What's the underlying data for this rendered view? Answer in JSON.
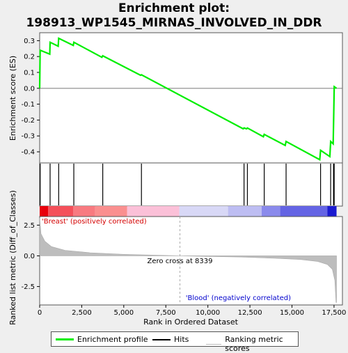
{
  "title_line1": "Enrichment plot:",
  "title_line2": "198913_WP1545_MIRNAS_INVOLVED_IN_DDR",
  "colors": {
    "enrichment": "#00ee00",
    "hits": "#000000",
    "metric": "#bdbdbd",
    "positive_label": "#d40000",
    "negative_label": "#0000cc"
  },
  "chart_data": {
    "type": "line",
    "xlabel": "Rank in Ordered Dataset",
    "ylabel_top": "Enrichment score (ES)",
    "ylabel_bottom": "Ranked list metric (Diff_of_Classes)",
    "xlim": [
      0,
      18000
    ],
    "x_ticks": [
      0,
      2500,
      5000,
      7500,
      10000,
      12500,
      15000,
      17500
    ],
    "x_tick_labels": [
      "0",
      "2,500",
      "5,000",
      "7,500",
      "10,000",
      "12,500",
      "15,000",
      "17,500"
    ],
    "es_ylim": [
      -0.47,
      0.35
    ],
    "es_ticks": [
      0.3,
      0.2,
      0.1,
      0.0,
      -0.1,
      -0.2,
      -0.3,
      -0.4
    ],
    "es_tick_labels": [
      "0.3",
      "0.2",
      "0.1",
      "0.0",
      "-0.1",
      "-0.2",
      "-0.3",
      "-0.4"
    ],
    "metric_ylim": [
      -4.0,
      3.2
    ],
    "metric_ticks": [
      2.5,
      0.0,
      -2.5
    ],
    "metric_tick_labels": [
      "2.5",
      "0.0",
      "-2.5"
    ],
    "series": [
      {
        "name": "Enrichment profile",
        "points": [
          [
            0,
            0.0
          ],
          [
            30,
            0.24
          ],
          [
            600,
            0.215
          ],
          [
            620,
            0.29
          ],
          [
            1100,
            0.265
          ],
          [
            1130,
            0.315
          ],
          [
            2000,
            0.27
          ],
          [
            2030,
            0.29
          ],
          [
            3700,
            0.195
          ],
          [
            3750,
            0.205
          ],
          [
            6000,
            0.082
          ],
          [
            6050,
            0.085
          ],
          [
            12100,
            -0.255
          ],
          [
            12150,
            -0.25
          ],
          [
            12300,
            -0.255
          ],
          [
            12350,
            -0.25
          ],
          [
            13300,
            -0.305
          ],
          [
            13350,
            -0.29
          ],
          [
            14600,
            -0.36
          ],
          [
            14650,
            -0.335
          ],
          [
            16650,
            -0.45
          ],
          [
            16700,
            -0.39
          ],
          [
            17250,
            -0.43
          ],
          [
            17300,
            -0.335
          ],
          [
            17450,
            -0.35
          ],
          [
            17470,
            -0.235
          ],
          [
            17490,
            -0.115
          ],
          [
            17510,
            0.01
          ],
          [
            17650,
            0.0
          ]
        ]
      },
      {
        "name": "Hits",
        "positions": [
          30,
          620,
          1130,
          2030,
          3750,
          6050,
          12150,
          12350,
          13350,
          14650,
          16700,
          17300,
          17470,
          17490,
          17510
        ]
      },
      {
        "name": "Ranking metric scores",
        "points": [
          [
            0,
            3.1
          ],
          [
            80,
            1.8
          ],
          [
            300,
            1.2
          ],
          [
            700,
            0.75
          ],
          [
            1500,
            0.45
          ],
          [
            3000,
            0.25
          ],
          [
            5000,
            0.12
          ],
          [
            7000,
            0.05
          ],
          [
            8339,
            0.0
          ],
          [
            10000,
            -0.05
          ],
          [
            12000,
            -0.1
          ],
          [
            14000,
            -0.2
          ],
          [
            15500,
            -0.3
          ],
          [
            16500,
            -0.45
          ],
          [
            17100,
            -0.7
          ],
          [
            17400,
            -1.1
          ],
          [
            17550,
            -2.0
          ],
          [
            17620,
            -3.8
          ],
          [
            17650,
            -3.8
          ]
        ]
      }
    ],
    "zero_cross": 8339,
    "annotations": {
      "zero_cross": "Zero cross at 8339",
      "positive": "'Breast' (positively correlated)",
      "negative": "'Blood' (negatively correlated)"
    },
    "legend": {
      "position": "bottom",
      "entries": [
        "Enrichment profile",
        "Hits",
        "Ranking metric scores"
      ]
    }
  }
}
